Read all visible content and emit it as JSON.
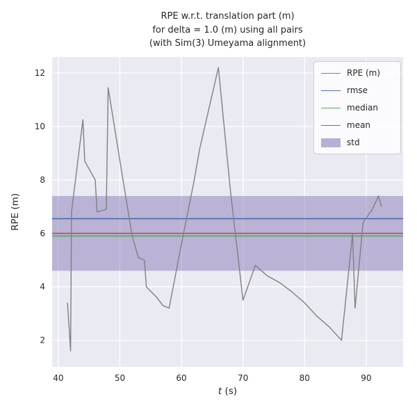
{
  "chart_data": {
    "type": "line",
    "title": "RPE w.r.t. translation part (m) for delta = 1.0 (m) using all pairs (with Sim(3) Umeyama alignment)",
    "title_lines": [
      "RPE w.r.t. translation part (m)",
      "for delta = 1.0 (m) using all pairs",
      "(with Sim(3) Umeyama alignment)"
    ],
    "xlabel": "t (s)",
    "xlabel_parts": {
      "var": "t",
      "rest": " (s)"
    },
    "ylabel": "RPE (m)",
    "xlim": [
      39,
      96
    ],
    "ylim": [
      1.0,
      12.6
    ],
    "xticks": [
      40,
      50,
      60,
      70,
      80,
      90
    ],
    "yticks": [
      2,
      4,
      6,
      8,
      10,
      12
    ],
    "grid": true,
    "legend_position": "upper right",
    "colors": {
      "plot_bg": "#eaeaf2",
      "grid": "#ffffff",
      "text": "#262626"
    },
    "series": [
      {
        "name": "RPE (m)",
        "color": "#808080",
        "x": [
          41.5,
          42.0,
          42.15,
          44.0,
          44.3,
          46.0,
          46.3,
          47.8,
          48.1,
          50.3,
          52.0,
          53.0,
          54.0,
          54.3,
          56.0,
          57.0,
          58.0,
          60.0,
          62.0,
          63.0,
          66.0,
          68.0,
          70.0,
          72.0,
          74.0,
          76.0,
          78.0,
          80.0,
          82.0,
          84.0,
          86.0,
          87.8,
          88.2,
          89.5,
          91.0,
          92.0,
          92.5
        ],
        "y": [
          3.4,
          1.6,
          6.8,
          10.25,
          8.7,
          8.0,
          6.8,
          6.9,
          11.45,
          8.3,
          5.9,
          5.1,
          5.0,
          4.0,
          3.6,
          3.3,
          3.2,
          5.6,
          7.9,
          9.2,
          12.2,
          7.5,
          3.5,
          4.8,
          4.4,
          4.15,
          3.8,
          3.4,
          2.9,
          2.5,
          2.0,
          6.0,
          3.2,
          6.4,
          6.9,
          7.4,
          7.0
        ]
      }
    ],
    "stats": {
      "rmse": {
        "value": 6.55,
        "color": "#4c72b0"
      },
      "median": {
        "value": 5.9,
        "color": "#55a868"
      },
      "mean": {
        "value": 6.0,
        "color": "#c44e52"
      },
      "std_band": {
        "low": 4.6,
        "high": 7.4,
        "color": "#8172b2",
        "alpha": 0.45
      }
    },
    "legend": [
      {
        "label": "RPE (m)",
        "swatch": "line",
        "color": "#808080"
      },
      {
        "label": "rmse",
        "swatch": "line",
        "color": "#4c72b0"
      },
      {
        "label": "median",
        "swatch": "line",
        "color": "#55a868"
      },
      {
        "label": "mean",
        "swatch": "line",
        "color": "#c44e52"
      },
      {
        "label": "std",
        "swatch": "patch",
        "color": "#8172b2"
      }
    ]
  }
}
